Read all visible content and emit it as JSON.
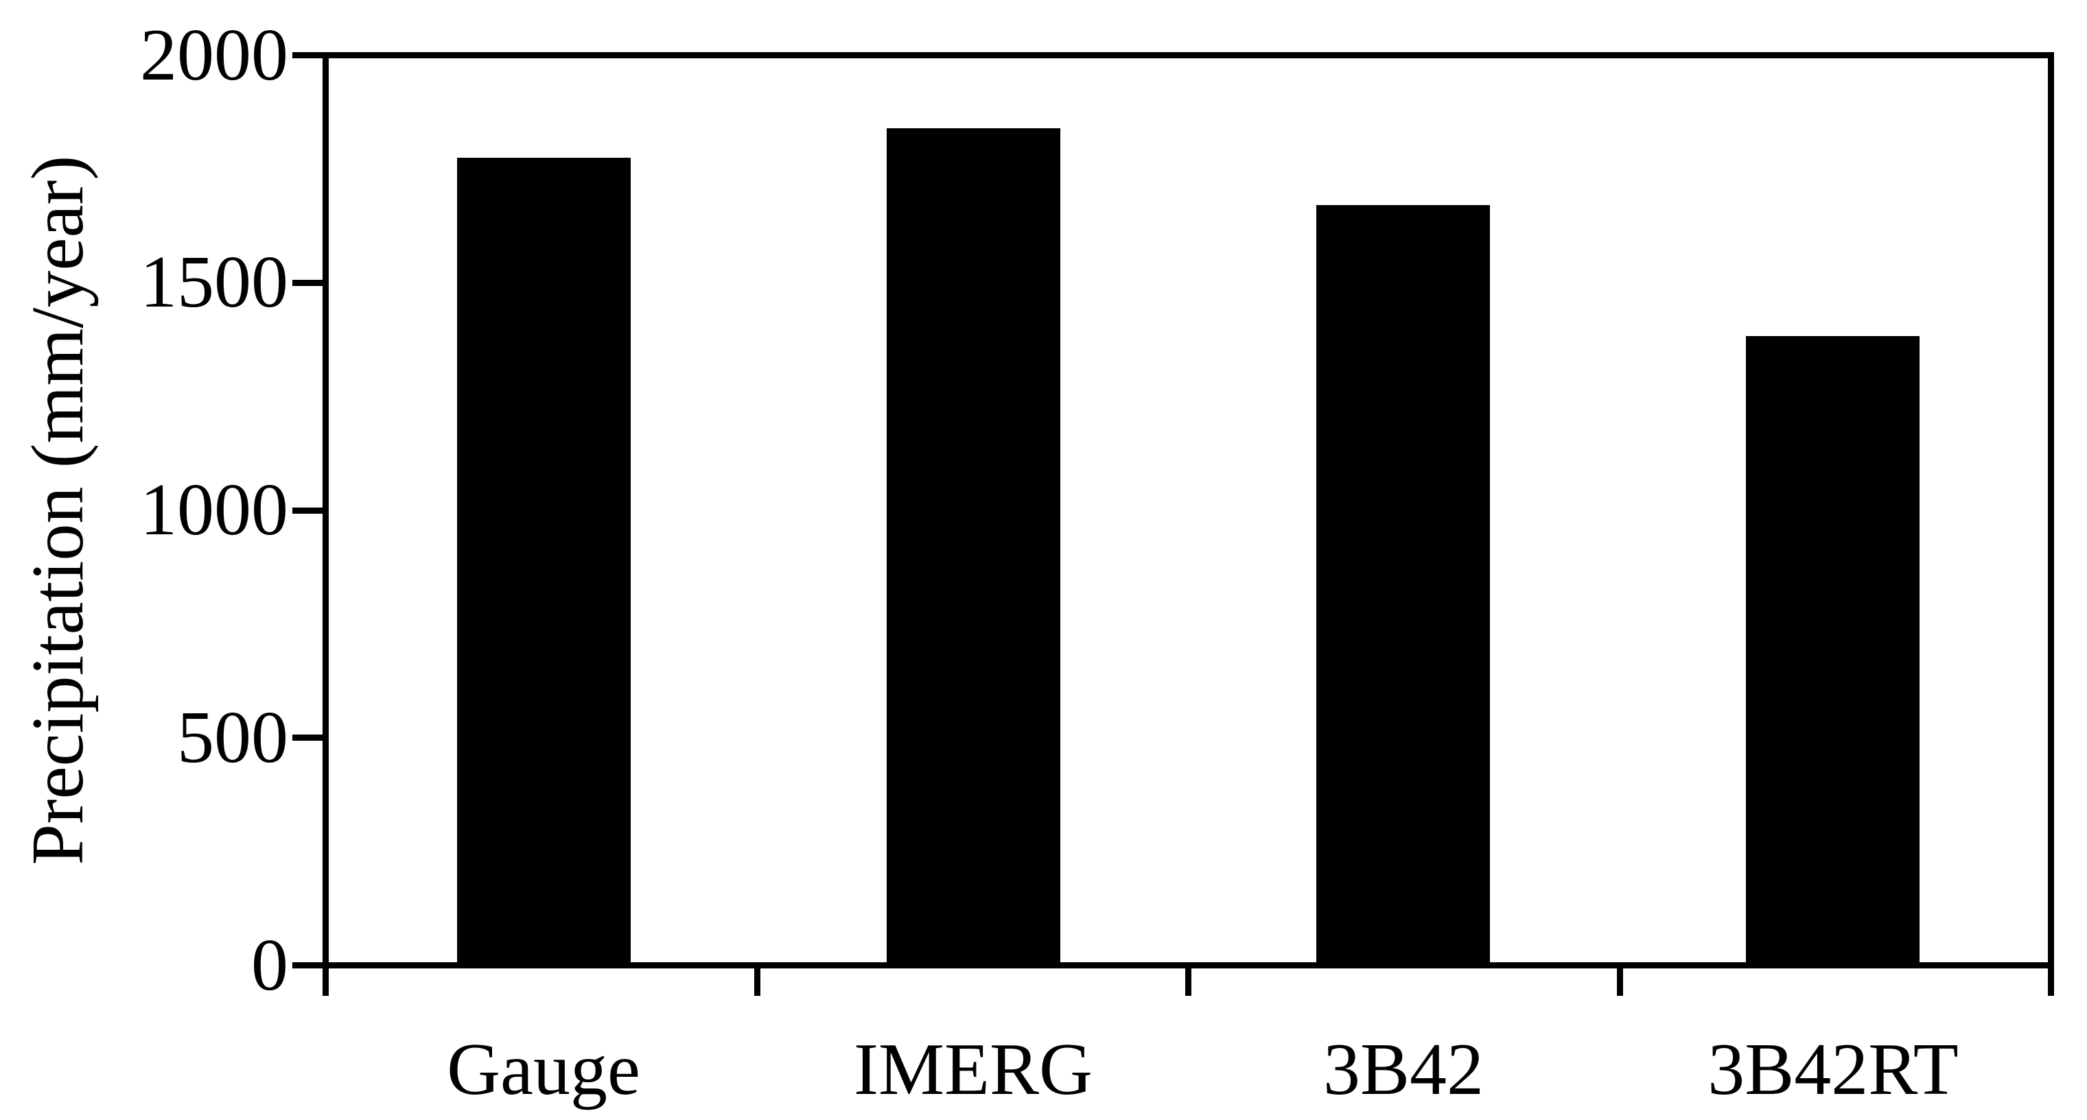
{
  "chart_data": {
    "type": "bar",
    "title": "",
    "categories": [
      "Gauge",
      "IMERG",
      "3B42",
      "3B42RT"
    ],
    "values": [
      1780,
      1845,
      1675,
      1385
    ],
    "series_name": "Precipitation",
    "xlabel": "",
    "ylabel": "Precipitation (mm/year)",
    "ylim": [
      0,
      2000
    ],
    "yticks": [
      0,
      500,
      1000,
      1500,
      2000
    ],
    "ytick_labels": [
      "0",
      "500",
      "1000",
      "1500",
      "2000"
    ],
    "bar_color": "#000000",
    "axis_color": "#000000",
    "background_color": "#ffffff",
    "grid": false,
    "legend": false
  }
}
